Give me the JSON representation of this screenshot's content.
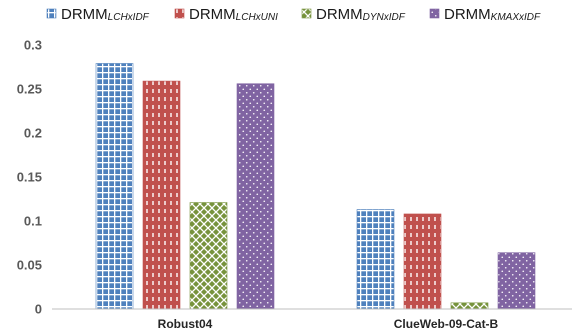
{
  "chart_data": {
    "type": "bar",
    "categories": [
      "Robust04",
      "ClueWeb-09-Cat-B"
    ],
    "series": [
      {
        "name": "DRMM",
        "subscript": "LCHxIDF",
        "color": "#4f81bd",
        "pattern": "grid",
        "values": [
          0.279,
          0.113
        ]
      },
      {
        "name": "DRMM",
        "subscript": "LCHxUNI",
        "color": "#c0504d",
        "pattern": "dashes",
        "values": [
          0.259,
          0.108
        ]
      },
      {
        "name": "DRMM",
        "subscript": "DYNxIDF",
        "color": "#77933c",
        "pattern": "diamond",
        "values": [
          0.121,
          0.007
        ]
      },
      {
        "name": "DRMM",
        "subscript": "KMAXxIDF",
        "color": "#8064a2",
        "pattern": "dots",
        "values": [
          0.256,
          0.064
        ]
      }
    ],
    "yticks": [
      "0",
      "0.05",
      "0.1",
      "0.15",
      "0.2",
      "0.25",
      "0.3"
    ],
    "ylim": [
      0,
      0.3
    ],
    "grid": false,
    "legend_position": "top"
  }
}
